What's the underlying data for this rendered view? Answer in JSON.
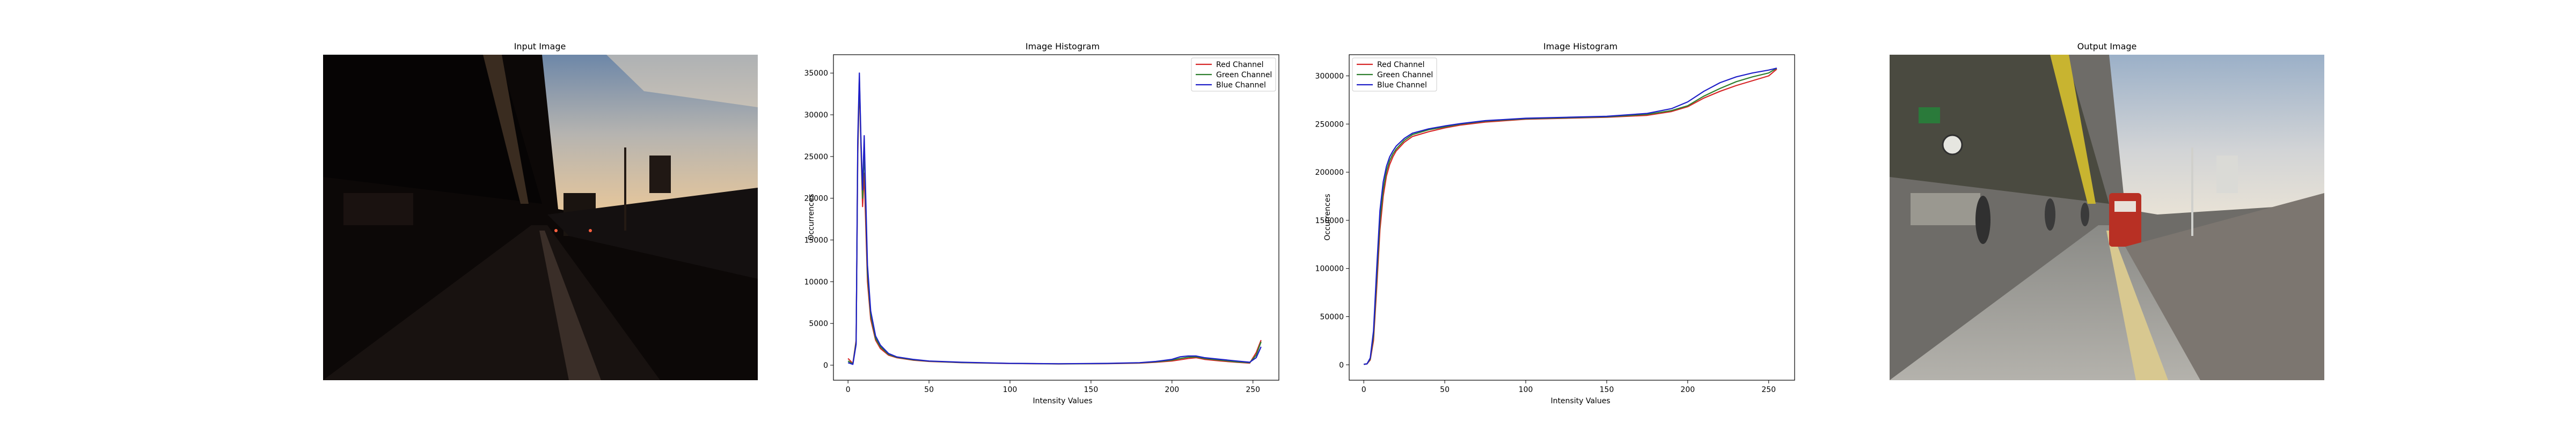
{
  "figure": {
    "panel1_title": "Input Image",
    "panel4_title": "Output Image"
  },
  "chart_data": [
    {
      "type": "line",
      "title": "Image Histogram",
      "xlabel": "Intensity Values",
      "ylabel": "Occurrences",
      "xlim": [
        -9,
        266
      ],
      "ylim": [
        -1800,
        37200
      ],
      "xticks": [
        0,
        50,
        100,
        150,
        200,
        250
      ],
      "yticks": [
        0,
        5000,
        10000,
        15000,
        20000,
        25000,
        30000,
        35000
      ],
      "grid": false,
      "legend": "top-right",
      "series": [
        {
          "name": "Red Channel",
          "color": "#d62728",
          "x": [
            0,
            3,
            5,
            6,
            7,
            8,
            9,
            10,
            12,
            14,
            17,
            20,
            25,
            30,
            40,
            50,
            70,
            100,
            130,
            160,
            180,
            190,
            200,
            205,
            210,
            215,
            220,
            230,
            240,
            248,
            252,
            255
          ],
          "y": [
            800,
            200,
            3000,
            25000,
            34000,
            26000,
            19000,
            23000,
            10000,
            5500,
            3000,
            2000,
            1200,
            900,
            600,
            450,
            300,
            200,
            150,
            180,
            250,
            350,
            500,
            650,
            800,
            900,
            700,
            500,
            350,
            250,
            1500,
            3000
          ]
        },
        {
          "name": "Green Channel",
          "color": "#2f7f2f",
          "x": [
            0,
            3,
            5,
            6,
            7,
            8,
            9,
            10,
            12,
            14,
            17,
            20,
            25,
            30,
            40,
            50,
            70,
            100,
            130,
            160,
            180,
            190,
            200,
            205,
            210,
            215,
            220,
            230,
            240,
            248,
            252,
            255
          ],
          "y": [
            500,
            150,
            2800,
            26000,
            34500,
            26500,
            20000,
            26000,
            11000,
            6000,
            3200,
            2200,
            1300,
            950,
            650,
            480,
            320,
            210,
            160,
            200,
            280,
            400,
            600,
            800,
            950,
            1000,
            800,
            600,
            400,
            300,
            1200,
            2800
          ]
        },
        {
          "name": "Blue Channel",
          "color": "#1f1fc8",
          "x": [
            0,
            3,
            5,
            6,
            7,
            8,
            9,
            10,
            12,
            14,
            17,
            20,
            25,
            30,
            40,
            50,
            70,
            100,
            130,
            160,
            180,
            190,
            200,
            205,
            210,
            215,
            220,
            230,
            240,
            248,
            252,
            255
          ],
          "y": [
            300,
            100,
            2500,
            27000,
            35000,
            27000,
            21000,
            27500,
            12000,
            6500,
            3500,
            2400,
            1400,
            1000,
            700,
            500,
            350,
            220,
            170,
            220,
            300,
            450,
            700,
            1000,
            1100,
            1100,
            900,
            700,
            500,
            350,
            900,
            2200
          ]
        }
      ]
    },
    {
      "type": "line",
      "title": "Image Histogram",
      "xlabel": "Intensity Values",
      "ylabel": "Occurrences",
      "xlim": [
        -9,
        266
      ],
      "ylim": [
        -16000,
        322000
      ],
      "xticks": [
        0,
        50,
        100,
        150,
        200,
        250
      ],
      "yticks": [
        0,
        50000,
        100000,
        150000,
        200000,
        250000,
        300000
      ],
      "grid": false,
      "legend": "top-left",
      "series": [
        {
          "name": "Red Channel",
          "color": "#d62728",
          "x": [
            0,
            2,
            4,
            6,
            8,
            10,
            12,
            14,
            16,
            18,
            20,
            25,
            30,
            40,
            50,
            60,
            75,
            100,
            125,
            150,
            175,
            190,
            200,
            210,
            220,
            230,
            240,
            250,
            255
          ],
          "y": [
            500,
            1000,
            5000,
            25000,
            80000,
            140000,
            175000,
            196000,
            208000,
            216000,
            222000,
            231000,
            237000,
            242000,
            246000,
            249000,
            252000,
            255000,
            256000,
            257000,
            259000,
            263000,
            268000,
            277000,
            284000,
            290000,
            295000,
            300000,
            307000
          ]
        },
        {
          "name": "Green Channel",
          "color": "#2f7f2f",
          "x": [
            0,
            2,
            4,
            6,
            8,
            10,
            12,
            14,
            16,
            18,
            20,
            25,
            30,
            40,
            50,
            60,
            75,
            100,
            125,
            150,
            175,
            190,
            200,
            210,
            220,
            230,
            240,
            250,
            255
          ],
          "y": [
            500,
            1000,
            6000,
            30000,
            90000,
            150000,
            182000,
            201000,
            212000,
            219000,
            224000,
            233000,
            239000,
            244000,
            247000,
            250000,
            253000,
            255500,
            256500,
            257500,
            260000,
            264000,
            269000,
            279000,
            287000,
            294000,
            299000,
            303000,
            308000
          ]
        },
        {
          "name": "Blue Channel",
          "color": "#1f1fc8",
          "x": [
            0,
            2,
            4,
            6,
            8,
            10,
            12,
            14,
            16,
            18,
            20,
            25,
            30,
            40,
            50,
            60,
            75,
            100,
            125,
            150,
            175,
            190,
            200,
            210,
            220,
            230,
            240,
            250,
            255
          ],
          "y": [
            500,
            1000,
            7000,
            35000,
            100000,
            160000,
            190000,
            206000,
            216000,
            222000,
            227000,
            235000,
            240500,
            245000,
            248000,
            250500,
            253500,
            256000,
            257000,
            258000,
            261000,
            266000,
            273000,
            284000,
            293000,
            299000,
            303000,
            306000,
            308000
          ]
        }
      ]
    }
  ]
}
